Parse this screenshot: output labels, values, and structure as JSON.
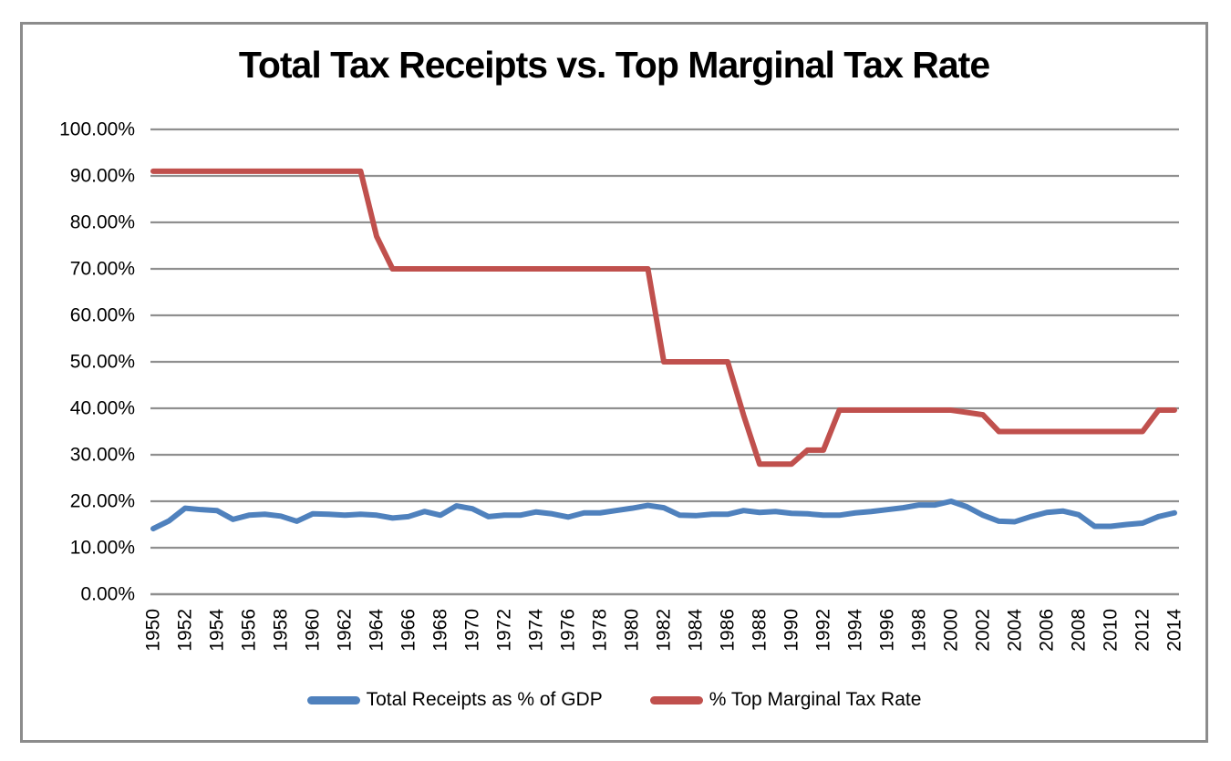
{
  "chart_data": {
    "type": "line",
    "title": "Total Tax Receipts vs. Top Marginal Tax Rate",
    "xlabel": "",
    "ylabel": "",
    "x": [
      1950,
      1951,
      1952,
      1953,
      1954,
      1955,
      1956,
      1957,
      1958,
      1959,
      1960,
      1961,
      1962,
      1963,
      1964,
      1965,
      1966,
      1967,
      1968,
      1969,
      1970,
      1971,
      1972,
      1973,
      1974,
      1975,
      1976,
      1977,
      1978,
      1979,
      1980,
      1981,
      1982,
      1983,
      1984,
      1985,
      1986,
      1987,
      1988,
      1989,
      1990,
      1991,
      1992,
      1993,
      1994,
      1995,
      1996,
      1997,
      1998,
      1999,
      2000,
      2001,
      2002,
      2003,
      2004,
      2005,
      2006,
      2007,
      2008,
      2009,
      2010,
      2011,
      2012,
      2013,
      2014
    ],
    "x_tick_labels": [
      "1950",
      "1952",
      "1954",
      "1956",
      "1958",
      "1960",
      "1962",
      "1964",
      "1966",
      "1968",
      "1970",
      "1972",
      "1974",
      "1976",
      "1978",
      "1980",
      "1982",
      "1984",
      "1986",
      "1988",
      "1990",
      "1992",
      "1994",
      "1996",
      "1998",
      "2000",
      "2002",
      "2004",
      "2006",
      "2008",
      "2010",
      "2012",
      "2014"
    ],
    "y_axis": {
      "min": 0,
      "max": 100,
      "tick_step": 10,
      "tick_labels": [
        "0.00%",
        "10.00%",
        "20.00%",
        "30.00%",
        "40.00%",
        "50.00%",
        "60.00%",
        "70.00%",
        "80.00%",
        "90.00%",
        "100.00%"
      ]
    },
    "grid": true,
    "legend_position": "bottom",
    "series": [
      {
        "name": "Total Receipts as % of GDP",
        "color": "#4F81BD",
        "values": [
          14.1,
          15.8,
          18.5,
          18.2,
          18.0,
          16.1,
          17.0,
          17.2,
          16.8,
          15.7,
          17.3,
          17.2,
          17.0,
          17.2,
          17.0,
          16.4,
          16.7,
          17.8,
          17.0,
          19.0,
          18.4,
          16.7,
          17.0,
          17.0,
          17.7,
          17.3,
          16.6,
          17.5,
          17.5,
          18.0,
          18.5,
          19.1,
          18.6,
          17.0,
          16.9,
          17.2,
          17.2,
          18.0,
          17.6,
          17.8,
          17.4,
          17.3,
          17.0,
          17.0,
          17.5,
          17.8,
          18.2,
          18.6,
          19.2,
          19.2,
          20.0,
          18.8,
          17.0,
          15.7,
          15.6,
          16.7,
          17.6,
          17.9,
          17.1,
          14.6,
          14.6,
          15.0,
          15.3,
          16.7,
          17.5
        ]
      },
      {
        "name": "% Top Marginal Tax Rate",
        "color": "#C0504D",
        "values": [
          91,
          91,
          91,
          91,
          91,
          91,
          91,
          91,
          91,
          91,
          91,
          91,
          91,
          91,
          77,
          70,
          70,
          70,
          70,
          70,
          70,
          70,
          70,
          70,
          70,
          70,
          70,
          70,
          70,
          70,
          70,
          70,
          50,
          50,
          50,
          50,
          50,
          38.5,
          28,
          28,
          28,
          31,
          31,
          39.6,
          39.6,
          39.6,
          39.6,
          39.6,
          39.6,
          39.6,
          39.6,
          39.1,
          38.6,
          35,
          35,
          35,
          35,
          35,
          35,
          35,
          35,
          35,
          35,
          39.6,
          39.6
        ]
      }
    ]
  },
  "colors": {
    "grid": "#8f8f8f",
    "axis_line": "#8f8f8f",
    "frame": "#8c8c8c",
    "background": "#ffffff",
    "title_text": "#000000",
    "axis_text": "#000000"
  }
}
